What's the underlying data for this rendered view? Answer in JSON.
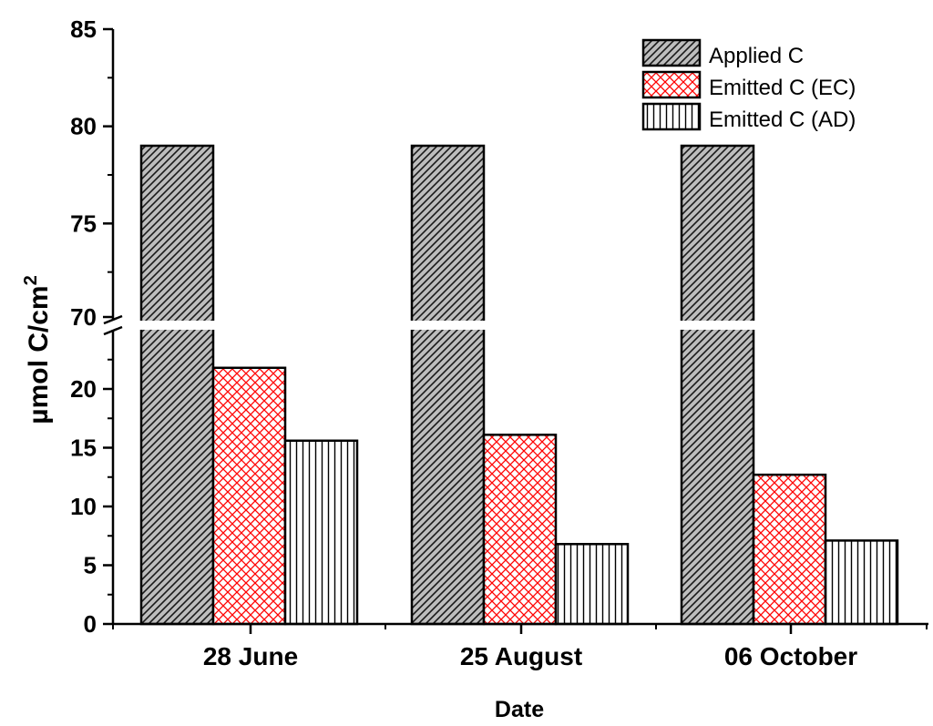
{
  "chart_data": {
    "type": "bar",
    "title": "",
    "xlabel": "Date",
    "ylabel_main": "µmol C/cm",
    "ylabel_sup": "2",
    "categories": [
      "28 June",
      "25 August",
      "06 October"
    ],
    "series": [
      {
        "name": "Applied C",
        "values": [
          79,
          79,
          79
        ],
        "pattern": "diagonal",
        "color": "#b8b8b8"
      },
      {
        "name": "Emitted C (EC)",
        "values": [
          21.8,
          16.1,
          12.7
        ],
        "pattern": "crosshatch",
        "color": "#ff0000"
      },
      {
        "name": "Emitted C (AD)",
        "values": [
          15.6,
          6.8,
          7.1
        ],
        "pattern": "vertical",
        "color": "#000000"
      }
    ],
    "axis_break": {
      "lower_range": [
        0,
        24
      ],
      "upper_range": [
        70,
        85
      ]
    },
    "lower_ticks": [
      0,
      5,
      10,
      15,
      20
    ],
    "upper_ticks": [
      70,
      75,
      80,
      85
    ],
    "legend_position": "top-right"
  }
}
